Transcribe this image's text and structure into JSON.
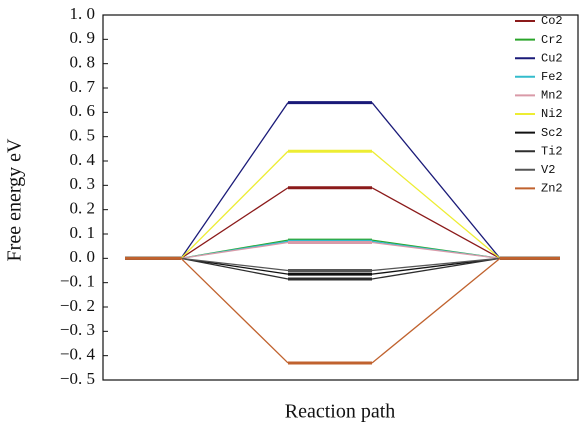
{
  "chart_data": {
    "type": "line",
    "y_label": "Free energy eV",
    "x_label": "Reaction path",
    "categories": [
      null,
      null,
      null
    ],
    "ylim": [
      -0.5,
      1.0
    ],
    "yticks": [
      {
        "value": -0.5,
        "label": "−0. 5"
      },
      {
        "value": -0.4,
        "label": "−0. 4"
      },
      {
        "value": -0.3,
        "label": "−0. 3"
      },
      {
        "value": -0.2,
        "label": "−0. 2"
      },
      {
        "value": -0.1,
        "label": "−0. 1"
      },
      {
        "value": 0,
        "label": "0. 0"
      },
      {
        "value": 0.1,
        "label": "0. 1"
      },
      {
        "value": 0.2,
        "label": "0. 2"
      },
      {
        "value": 0.3,
        "label": "0. 3"
      },
      {
        "value": 0.4,
        "label": "0. 4"
      },
      {
        "value": 0.5,
        "label": "0. 5"
      },
      {
        "value": 0.6,
        "label": "0. 6"
      },
      {
        "value": 0.7,
        "label": "0. 7"
      },
      {
        "value": 0.8,
        "label": "0. 8"
      },
      {
        "value": 0.9,
        "label": "0. 9"
      },
      {
        "value": 1.0,
        "label": "1. 0"
      }
    ],
    "grid": false,
    "legend": "upper right",
    "series": [
      {
        "name": "Co2",
        "color": "#8b1a1a",
        "values": [
          0,
          0.29,
          0
        ]
      },
      {
        "name": "Cr2",
        "color": "#2aa52a",
        "values": [
          0,
          0.075,
          0
        ]
      },
      {
        "name": "Cu2",
        "color": "#1a1a78",
        "values": [
          0,
          0.64,
          0
        ]
      },
      {
        "name": "Fe2",
        "color": "#33bccc",
        "values": [
          0,
          0.07,
          0
        ]
      },
      {
        "name": "Mn2",
        "color": "#d99aa8",
        "values": [
          0,
          0.065,
          0
        ]
      },
      {
        "name": "Ni2",
        "color": "#eded33",
        "values": [
          0,
          0.44,
          0
        ]
      },
      {
        "name": "Sc2",
        "color": "#111111",
        "values": [
          0,
          -0.065,
          0
        ]
      },
      {
        "name": "Ti2",
        "color": "#2e2e2e",
        "values": [
          0,
          -0.085,
          0
        ]
      },
      {
        "name": "V2",
        "color": "#555555",
        "values": [
          0,
          -0.05,
          0
        ]
      },
      {
        "name": "Zn2",
        "color": "#c0622e",
        "values": [
          0,
          -0.43,
          0
        ]
      }
    ]
  }
}
